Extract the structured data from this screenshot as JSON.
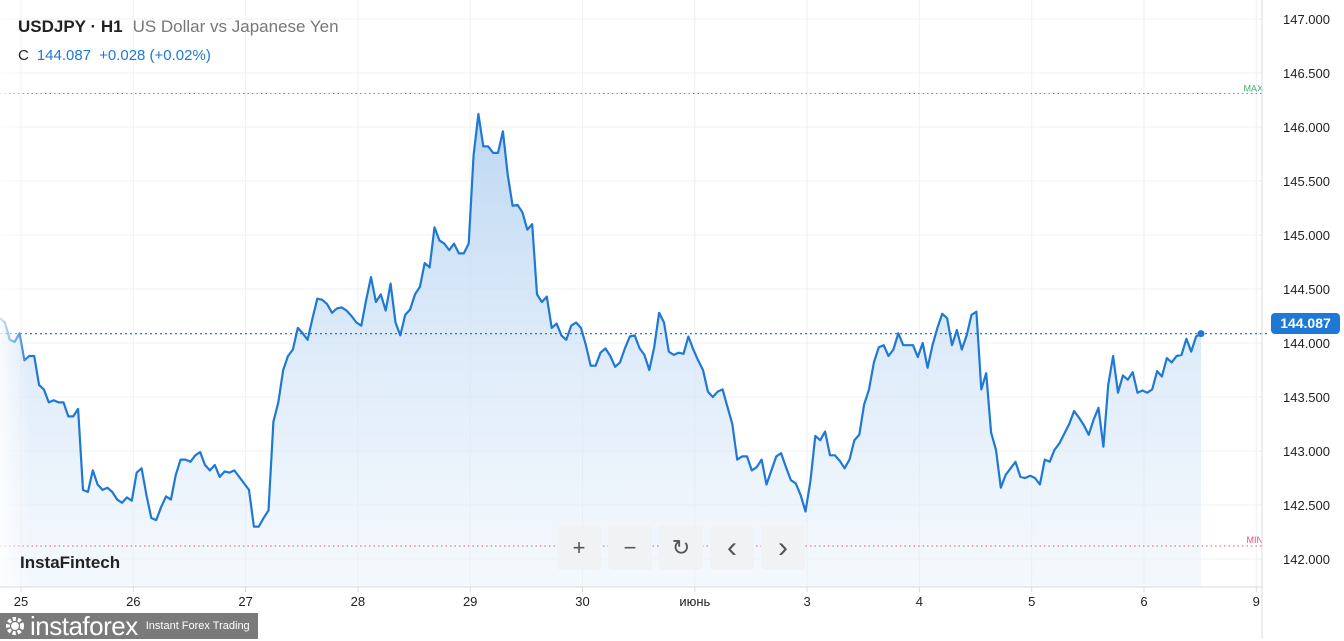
{
  "header": {
    "symbol": "USDJPY · H1",
    "description": "US Dollar vs Japanese Yen",
    "close_label": "C",
    "close_value": "144.087",
    "change": "+0.028 (+0.02%)"
  },
  "brand": "InstaFintech",
  "logo": {
    "name": "instaforex",
    "tagline": "Instant Forex Trading"
  },
  "controls": [
    {
      "name": "zoom-in-button",
      "icon": "plus-icon",
      "glyph": "+"
    },
    {
      "name": "zoom-out-button",
      "icon": "minus-icon",
      "glyph": "−"
    },
    {
      "name": "reset-button",
      "icon": "reset-icon",
      "glyph": "↻"
    },
    {
      "name": "scroll-left-button",
      "icon": "chevron-left-icon",
      "glyph": "‹"
    },
    {
      "name": "scroll-right-button",
      "icon": "chevron-right-icon",
      "glyph": "›"
    }
  ],
  "colors": {
    "line": "#1e78d6",
    "fill_top": "#b9d5f2",
    "max_line": "#3cb371",
    "min_line": "#e8507a",
    "grid": "#eef0f3"
  },
  "chart_data": {
    "type": "area",
    "grid": true,
    "ylim": [
      142.0,
      147.0
    ],
    "y_ticks": [
      "147.000",
      "146.500",
      "146.000",
      "145.500",
      "145.000",
      "144.500",
      "144.000",
      "143.500",
      "143.000",
      "142.500",
      "142.000"
    ],
    "x_ticks": [
      "25",
      "26",
      "27",
      "28",
      "29",
      "30",
      "июнь",
      "3",
      "4",
      "5",
      "6",
      "9"
    ],
    "last_price": "144.087",
    "max": {
      "label": "MAX",
      "value": 146.31
    },
    "min": {
      "label": "MIN",
      "value": 142.12
    },
    "values": [
      144.23,
      144.19,
      144.03,
      144.01,
      144.09,
      143.84,
      143.88,
      143.88,
      143.61,
      143.57,
      143.45,
      143.47,
      143.45,
      143.45,
      143.32,
      143.32,
      143.39,
      142.64,
      142.62,
      142.82,
      142.69,
      142.64,
      142.66,
      142.62,
      142.55,
      142.52,
      142.57,
      142.54,
      142.8,
      142.84,
      142.59,
      142.38,
      142.36,
      142.48,
      142.58,
      142.55,
      142.78,
      142.92,
      142.92,
      142.9,
      142.96,
      142.99,
      142.87,
      142.82,
      142.87,
      142.76,
      142.81,
      142.8,
      142.82,
      142.76,
      142.7,
      142.64,
      142.3,
      142.3,
      142.38,
      142.45,
      143.27,
      143.45,
      143.75,
      143.88,
      143.94,
      144.14,
      144.09,
      144.03,
      144.23,
      144.41,
      144.4,
      144.36,
      144.28,
      144.32,
      144.33,
      144.3,
      144.25,
      144.19,
      144.16,
      144.4,
      144.61,
      144.38,
      144.45,
      144.3,
      144.55,
      144.19,
      144.07,
      144.26,
      144.31,
      144.45,
      144.52,
      144.74,
      144.7,
      145.07,
      144.95,
      144.92,
      144.86,
      144.92,
      144.83,
      144.83,
      144.92,
      145.74,
      146.12,
      145.82,
      145.82,
      145.76,
      145.76,
      145.96,
      145.56,
      145.27,
      145.28,
      145.21,
      145.05,
      145.1,
      144.45,
      144.38,
      144.43,
      144.14,
      144.18,
      144.07,
      144.03,
      144.16,
      144.19,
      144.14,
      143.98,
      143.79,
      143.79,
      143.91,
      143.95,
      143.88,
      143.78,
      143.82,
      143.95,
      144.06,
      144.07,
      143.95,
      143.89,
      143.75,
      143.96,
      144.28,
      144.19,
      143.92,
      143.89,
      143.91,
      143.9,
      144.06,
      143.94,
      143.84,
      143.75,
      143.55,
      143.5,
      143.55,
      143.57,
      143.41,
      143.25,
      142.92,
      142.95,
      142.95,
      142.82,
      142.85,
      142.92,
      142.69,
      142.82,
      142.95,
      142.98,
      142.85,
      142.73,
      142.7,
      142.59,
      142.44,
      142.72,
      143.14,
      143.1,
      143.18,
      142.96,
      142.96,
      142.91,
      142.84,
      142.92,
      143.1,
      143.15,
      143.43,
      143.57,
      143.82,
      143.96,
      143.98,
      143.88,
      143.94,
      144.09,
      143.98,
      143.98,
      143.98,
      143.87,
      144.0,
      143.77,
      143.98,
      144.14,
      144.27,
      144.23,
      143.98,
      144.12,
      143.94,
      144.07,
      144.26,
      144.29,
      143.57,
      143.72,
      143.17,
      143.01,
      142.66,
      142.78,
      142.84,
      142.9,
      142.76,
      142.75,
      142.77,
      142.75,
      142.69,
      142.92,
      142.9,
      143.01,
      143.07,
      143.16,
      143.25,
      143.37,
      143.31,
      143.24,
      143.15,
      143.29,
      143.4,
      143.04,
      143.61,
      143.88,
      143.54,
      143.7,
      143.66,
      143.73,
      143.54,
      143.56,
      143.54,
      143.57,
      143.74,
      143.69,
      143.86,
      143.82,
      143.88,
      143.89,
      144.04,
      143.92,
      144.06,
      144.087
    ]
  }
}
